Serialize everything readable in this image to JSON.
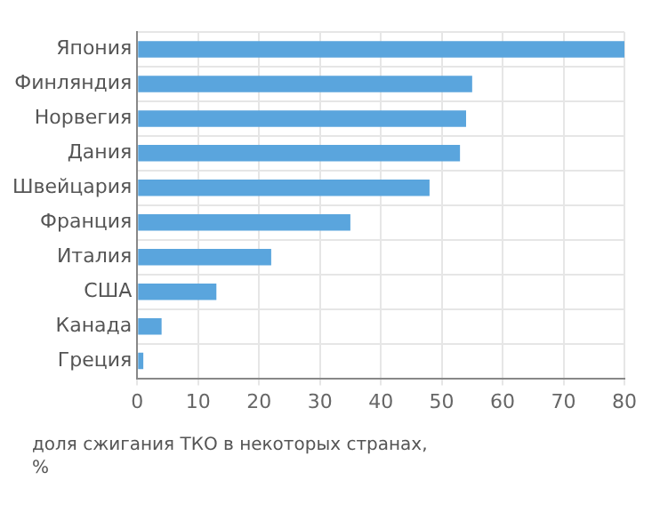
{
  "chart_data": {
    "type": "bar",
    "orientation": "horizontal",
    "categories": [
      "Япония",
      "Финляндия",
      "Норвегия",
      "Дания",
      "Швейцария",
      "Франция",
      "Италия",
      "США",
      "Канада",
      "Греция"
    ],
    "values": [
      80,
      55,
      54,
      53,
      48,
      35,
      22,
      13,
      4,
      1
    ],
    "color": "#5aa5dd",
    "xlim": [
      0,
      80
    ],
    "xticks": [
      0,
      10,
      20,
      30,
      40,
      50,
      60,
      70,
      80
    ],
    "grid": true,
    "legend": false,
    "annotations": [
      "доля сжигания ТКО в некоторых странах, %"
    ]
  }
}
